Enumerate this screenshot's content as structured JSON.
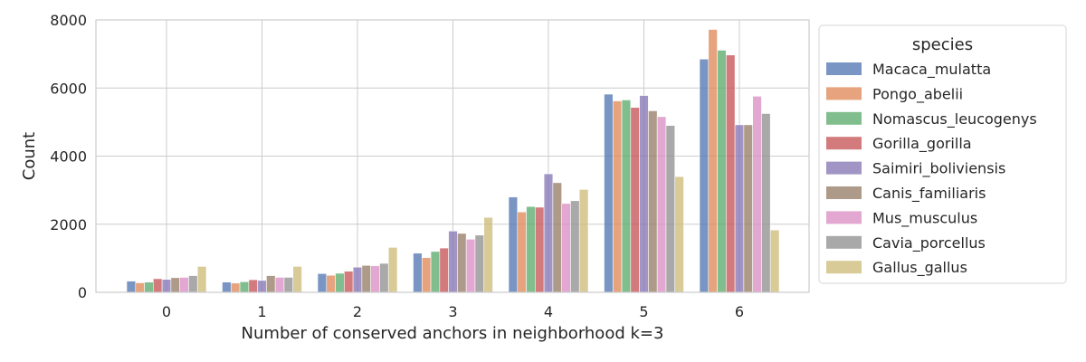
{
  "chart_data": {
    "type": "bar",
    "xlabel": "Number of conserved anchors in neighborhood k=3",
    "ylabel": "Count",
    "ylim": [
      0,
      8000
    ],
    "yticks": [
      "0",
      "2000",
      "4000",
      "6000",
      "8000"
    ],
    "categories": [
      "0",
      "1",
      "2",
      "3",
      "4",
      "5",
      "6"
    ],
    "grid": true,
    "legend": {
      "title": "species",
      "placement": "right"
    },
    "series": [
      {
        "name": "Macaca_mulatta",
        "color": "#4c72b0",
        "values": [
          330,
          300,
          550,
          1150,
          2800,
          5820,
          6850
        ]
      },
      {
        "name": "Pongo_abelii",
        "color": "#dd8452",
        "values": [
          280,
          270,
          500,
          1020,
          2360,
          5620,
          7720
        ]
      },
      {
        "name": "Nomascus_leucogenys",
        "color": "#55a868",
        "values": [
          300,
          310,
          560,
          1200,
          2520,
          5650,
          7110
        ]
      },
      {
        "name": "Gorilla_gorilla",
        "color": "#c44e52",
        "values": [
          400,
          370,
          620,
          1300,
          2500,
          5430,
          6970
        ]
      },
      {
        "name": "Saimiri_boliviensis",
        "color": "#8172b3",
        "values": [
          380,
          350,
          740,
          1800,
          3480,
          5780,
          4920
        ]
      },
      {
        "name": "Canis_familiaris",
        "color": "#937860",
        "values": [
          430,
          490,
          790,
          1730,
          3220,
          5330,
          4920
        ]
      },
      {
        "name": "Mus_musculus",
        "color": "#da8bc3",
        "values": [
          440,
          440,
          780,
          1560,
          2610,
          5160,
          5760
        ]
      },
      {
        "name": "Cavia_porcellus",
        "color": "#8c8c8c",
        "values": [
          490,
          440,
          850,
          1680,
          2690,
          4900,
          5250
        ]
      },
      {
        "name": "Gallus_gallus",
        "color": "#ccb974",
        "values": [
          760,
          760,
          1320,
          2200,
          3020,
          3400,
          1830
        ]
      }
    ]
  }
}
